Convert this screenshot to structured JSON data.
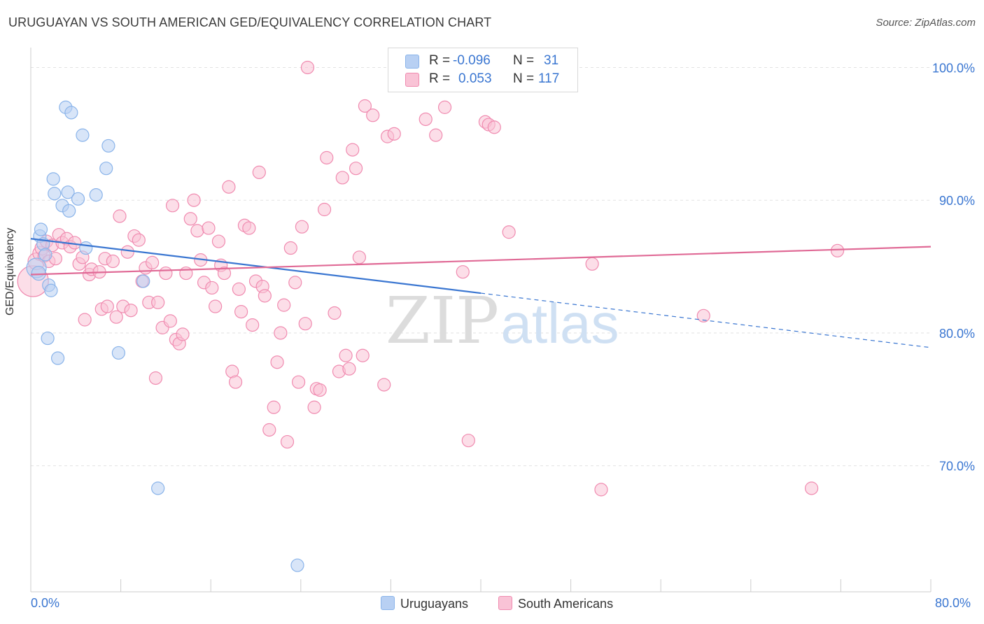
{
  "header": {
    "title": "URUGUAYAN VS SOUTH AMERICAN GED/EQUIVALENCY CORRELATION CHART",
    "source": "Source: ZipAtlas.com"
  },
  "watermark": {
    "zip": "ZIP",
    "atlas": "atlas"
  },
  "legend": {
    "rows": [
      {
        "r_label": "R =",
        "r_value": "-0.096",
        "n_label": "N =",
        "n_value": "31",
        "color": "#8ab4ea",
        "fill": "#b8d0f3"
      },
      {
        "r_label": "R =",
        "r_value": "0.053",
        "n_label": "N =",
        "n_value": "117",
        "color": "#f08bb0",
        "fill": "#f9c3d6"
      }
    ]
  },
  "bottom_legend": {
    "uruguayans": "Uruguayans",
    "south_americans": "South Americans"
  },
  "chart_data": {
    "type": "scatter",
    "title": "URUGUAYAN VS SOUTH AMERICAN GED/EQUIVALENCY CORRELATION CHART",
    "xlabel": "",
    "ylabel": "GED/Equivalency",
    "xlim": [
      0,
      80
    ],
    "ylim": [
      60.5,
      101.5
    ],
    "x_tick_labels": [
      "0.0%",
      "80.0%"
    ],
    "y_ticks": [
      {
        "value": 100,
        "label": "100.0%"
      },
      {
        "value": 90,
        "label": "90.0%"
      },
      {
        "value": 80,
        "label": "80.0%"
      },
      {
        "value": 70,
        "label": "70.0%"
      }
    ],
    "grid": true,
    "legend_position": "top-center",
    "series": [
      {
        "name": "Uruguayans",
        "color": "#8ab4ea",
        "fill": "#b8d0f3",
        "trend": {
          "x0": 0,
          "y0": 87.1,
          "x1": 40,
          "y1": 83.0,
          "dashed_to_x": 80,
          "dashed_to_y": 78.9,
          "color": "#3a76d1"
        },
        "points": [
          [
            0.5,
            84.9,
            14
          ],
          [
            0.7,
            84.5,
            10
          ],
          [
            0.8,
            87.3,
            9
          ],
          [
            0.9,
            87.8,
            9
          ],
          [
            1.1,
            86.7,
            9
          ],
          [
            1.3,
            85.9,
            9
          ],
          [
            1.5,
            79.6,
            9
          ],
          [
            1.6,
            83.6,
            9
          ],
          [
            1.8,
            83.2,
            9
          ],
          [
            2.0,
            91.6,
            9
          ],
          [
            2.1,
            90.5,
            9
          ],
          [
            2.4,
            78.1,
            9
          ],
          [
            2.8,
            89.6,
            9
          ],
          [
            3.1,
            97.0,
            9
          ],
          [
            3.3,
            90.6,
            9
          ],
          [
            3.4,
            89.2,
            9
          ],
          [
            3.6,
            96.6,
            9
          ],
          [
            4.2,
            90.1,
            9
          ],
          [
            4.6,
            94.9,
            9
          ],
          [
            4.9,
            86.4,
            9
          ],
          [
            5.8,
            90.4,
            9
          ],
          [
            6.7,
            92.4,
            9
          ],
          [
            6.9,
            94.1,
            9
          ],
          [
            7.8,
            78.5,
            9
          ],
          [
            10.0,
            83.9,
            9
          ],
          [
            11.3,
            68.3,
            9
          ],
          [
            23.7,
            62.5,
            9
          ]
        ]
      },
      {
        "name": "South Americans",
        "color": "#f08bb0",
        "fill": "#f9c3d6",
        "trend": {
          "x0": 0,
          "y0": 84.4,
          "x1": 80,
          "y1": 86.5,
          "color": "#e06a96"
        },
        "points": [
          [
            0.2,
            83.9,
            22
          ],
          [
            0.5,
            85.4,
            12
          ],
          [
            0.8,
            86.0,
            10
          ],
          [
            1.0,
            86.4,
            10
          ],
          [
            1.2,
            85.8,
            9
          ],
          [
            1.4,
            86.9,
            9
          ],
          [
            1.6,
            85.4,
            9
          ],
          [
            1.9,
            86.6,
            9
          ],
          [
            2.2,
            85.6,
            9
          ],
          [
            2.5,
            87.4,
            9
          ],
          [
            2.8,
            86.8,
            9
          ],
          [
            3.2,
            87.1,
            9
          ],
          [
            3.5,
            86.5,
            9
          ],
          [
            3.9,
            86.8,
            9
          ],
          [
            4.3,
            85.2,
            9
          ],
          [
            4.6,
            85.7,
            9
          ],
          [
            4.8,
            81.0,
            9
          ],
          [
            5.2,
            84.4,
            9
          ],
          [
            5.4,
            84.8,
            9
          ],
          [
            6.1,
            84.6,
            9
          ],
          [
            6.3,
            81.8,
            9
          ],
          [
            6.6,
            85.6,
            9
          ],
          [
            6.8,
            82.0,
            9
          ],
          [
            7.3,
            85.4,
            9
          ],
          [
            7.6,
            81.2,
            9
          ],
          [
            7.9,
            88.8,
            9
          ],
          [
            8.2,
            82.0,
            9
          ],
          [
            8.6,
            86.1,
            9
          ],
          [
            8.9,
            81.7,
            9
          ],
          [
            9.2,
            87.3,
            9
          ],
          [
            9.6,
            87.0,
            9
          ],
          [
            9.9,
            83.9,
            9
          ],
          [
            10.2,
            84.9,
            9
          ],
          [
            10.5,
            82.3,
            9
          ],
          [
            10.8,
            85.3,
            9
          ],
          [
            11.1,
            76.6,
            9
          ],
          [
            11.3,
            82.3,
            9
          ],
          [
            11.7,
            80.4,
            9
          ],
          [
            12.0,
            84.5,
            9
          ],
          [
            12.4,
            80.9,
            9
          ],
          [
            12.6,
            89.6,
            9
          ],
          [
            12.9,
            79.5,
            9
          ],
          [
            13.2,
            79.2,
            9
          ],
          [
            13.5,
            79.9,
            9
          ],
          [
            13.8,
            84.5,
            9
          ],
          [
            14.2,
            88.6,
            9
          ],
          [
            14.5,
            90.0,
            9
          ],
          [
            14.8,
            87.7,
            9
          ],
          [
            15.1,
            85.5,
            9
          ],
          [
            15.4,
            83.8,
            9
          ],
          [
            15.8,
            87.9,
            9
          ],
          [
            16.1,
            83.4,
            9
          ],
          [
            16.4,
            82.0,
            9
          ],
          [
            16.7,
            86.9,
            9
          ],
          [
            16.9,
            85.1,
            9
          ],
          [
            17.2,
            84.5,
            9
          ],
          [
            17.6,
            91.0,
            9
          ],
          [
            17.9,
            77.1,
            9
          ],
          [
            18.2,
            76.3,
            9
          ],
          [
            18.5,
            83.3,
            9
          ],
          [
            18.7,
            81.6,
            9
          ],
          [
            19.0,
            88.1,
            9
          ],
          [
            19.4,
            87.9,
            9
          ],
          [
            19.7,
            80.6,
            9
          ],
          [
            20.0,
            83.9,
            9
          ],
          [
            20.3,
            92.1,
            9
          ],
          [
            20.6,
            83.5,
            9
          ],
          [
            20.8,
            82.8,
            9
          ],
          [
            21.2,
            72.7,
            9
          ],
          [
            21.6,
            74.4,
            9
          ],
          [
            21.9,
            77.8,
            9
          ],
          [
            22.2,
            80.0,
            9
          ],
          [
            22.5,
            82.1,
            9
          ],
          [
            22.8,
            71.8,
            9
          ],
          [
            23.1,
            86.4,
            9
          ],
          [
            23.5,
            83.8,
            9
          ],
          [
            23.8,
            76.3,
            9
          ],
          [
            24.1,
            88.0,
            9
          ],
          [
            24.4,
            80.7,
            9
          ],
          [
            24.6,
            100.0,
            9
          ],
          [
            25.2,
            74.4,
            9
          ],
          [
            25.4,
            75.8,
            9
          ],
          [
            25.7,
            75.7,
            9
          ],
          [
            26.3,
            93.2,
            9
          ],
          [
            26.1,
            89.3,
            9
          ],
          [
            27.0,
            81.5,
            9
          ],
          [
            27.4,
            77.1,
            9
          ],
          [
            27.7,
            91.7,
            9
          ],
          [
            28.0,
            78.3,
            9
          ],
          [
            28.3,
            77.3,
            9
          ],
          [
            28.6,
            93.8,
            9
          ],
          [
            28.9,
            92.4,
            9
          ],
          [
            29.2,
            85.7,
            9
          ],
          [
            29.5,
            78.3,
            9
          ],
          [
            29.7,
            97.1,
            9
          ],
          [
            30.4,
            96.4,
            9
          ],
          [
            31.4,
            76.1,
            9
          ],
          [
            31.7,
            94.8,
            9
          ],
          [
            32.3,
            95.0,
            9
          ],
          [
            35.1,
            96.1,
            9
          ],
          [
            36.0,
            94.9,
            9
          ],
          [
            36.8,
            97.0,
            9
          ],
          [
            38.4,
            84.6,
            9
          ],
          [
            38.9,
            71.9,
            9
          ],
          [
            40.4,
            95.9,
            9
          ],
          [
            40.7,
            95.7,
            9
          ],
          [
            41.2,
            95.5,
            9
          ],
          [
            42.5,
            87.6,
            9
          ],
          [
            49.9,
            85.2,
            9
          ],
          [
            50.7,
            68.2,
            9
          ],
          [
            59.8,
            81.3,
            9
          ],
          [
            69.4,
            68.3,
            9
          ],
          [
            71.7,
            86.2,
            9
          ]
        ]
      }
    ]
  }
}
